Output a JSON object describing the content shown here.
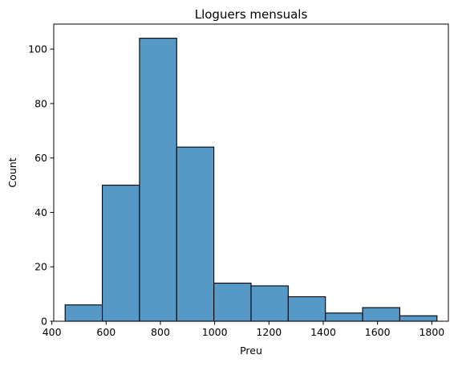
{
  "chart_data": {
    "type": "bar",
    "title": "Lloguers mensuals",
    "xlabel": "Preu",
    "ylabel": "Count",
    "bin_edges": [
      449,
      586,
      723,
      860,
      997,
      1134,
      1271,
      1408,
      1545,
      1682,
      1819
    ],
    "values": [
      6,
      50,
      104,
      64,
      14,
      13,
      9,
      3,
      5,
      2
    ],
    "xlim": [
      407,
      1861
    ],
    "ylim": [
      0,
      109.2
    ],
    "x_ticks": [
      400,
      600,
      800,
      1000,
      1200,
      1400,
      1600,
      1800
    ],
    "y_ticks": [
      0,
      20,
      40,
      60,
      80,
      100
    ],
    "grid": false,
    "colors": {
      "bar_fill": "#5799c6",
      "bar_edge": "#000000",
      "axis": "#000000"
    }
  }
}
